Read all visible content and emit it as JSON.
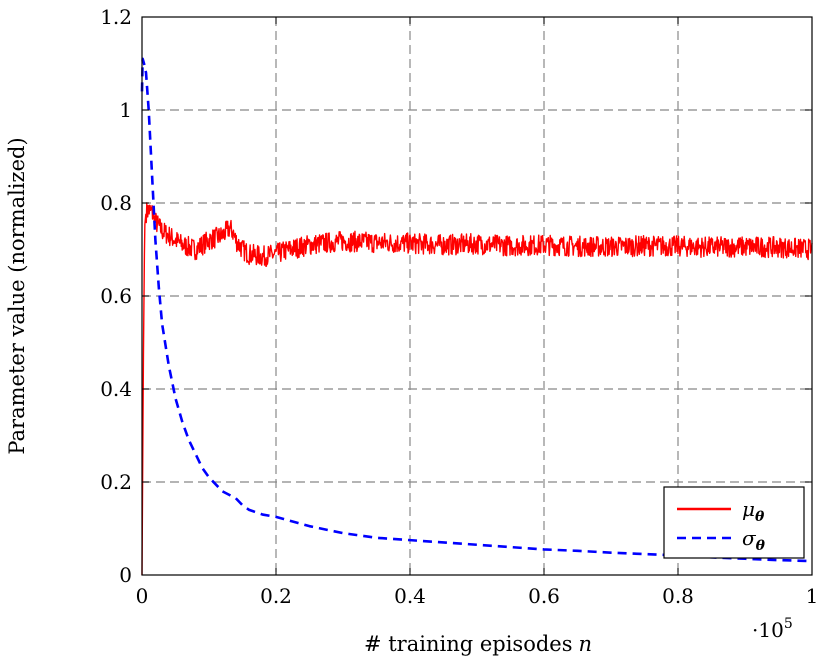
{
  "chart_data": {
    "type": "line",
    "xlabel": "# training episodes",
    "xlabel_var": "n",
    "ylabel": "Parameter value (normalized)",
    "x_multiplier_base": "·10",
    "x_multiplier_exp": "5",
    "xlim": [
      0,
      1
    ],
    "ylim": [
      0,
      1.2
    ],
    "xticks": [
      "0",
      "0.2",
      "0.4",
      "0.6",
      "0.8",
      "1"
    ],
    "yticks": [
      "0",
      "0.2",
      "0.4",
      "0.6",
      "0.8",
      "1",
      "1.2"
    ],
    "grid": true,
    "legend_position": "bottom-right",
    "series": [
      {
        "name": "μθ",
        "symbol": "μ",
        "subscript": "θ",
        "color": "#ff0000",
        "style": "solid",
        "noisy": true,
        "x": [
          0,
          0.002,
          0.004,
          0.006,
          0.01,
          0.015,
          0.02,
          0.025,
          0.03,
          0.04,
          0.05,
          0.06,
          0.08,
          0.1,
          0.12,
          0.13,
          0.135,
          0.14,
          0.15,
          0.16,
          0.18,
          0.2,
          0.22,
          0.25,
          0.28,
          0.3,
          0.35,
          0.4,
          0.45,
          0.5,
          0.55,
          0.6,
          0.65,
          0.7,
          0.75,
          0.8,
          0.85,
          0.9,
          0.95,
          1.0
        ],
        "y": [
          0.0,
          0.45,
          0.75,
          0.78,
          0.785,
          0.78,
          0.76,
          0.75,
          0.74,
          0.73,
          0.72,
          0.71,
          0.7,
          0.72,
          0.73,
          0.745,
          0.74,
          0.72,
          0.7,
          0.69,
          0.685,
          0.69,
          0.7,
          0.71,
          0.715,
          0.718,
          0.715,
          0.713,
          0.71,
          0.712,
          0.708,
          0.71,
          0.707,
          0.706,
          0.708,
          0.707,
          0.705,
          0.706,
          0.705,
          0.7
        ]
      },
      {
        "name": "σθ",
        "symbol": "σ",
        "subscript": "θ",
        "color": "#0000ff",
        "style": "dashed",
        "noisy": false,
        "x": [
          0,
          0.001,
          0.003,
          0.006,
          0.01,
          0.015,
          0.02,
          0.025,
          0.03,
          0.04,
          0.05,
          0.06,
          0.07,
          0.08,
          0.09,
          0.1,
          0.12,
          0.14,
          0.15,
          0.16,
          0.18,
          0.2,
          0.25,
          0.3,
          0.35,
          0.4,
          0.45,
          0.5,
          0.55,
          0.6,
          0.65,
          0.7,
          0.75,
          0.8,
          0.85,
          0.9,
          0.95,
          1.0
        ],
        "y": [
          1.04,
          1.11,
          1.1,
          1.08,
          1.0,
          0.86,
          0.72,
          0.62,
          0.54,
          0.45,
          0.38,
          0.33,
          0.29,
          0.26,
          0.23,
          0.21,
          0.18,
          0.165,
          0.15,
          0.14,
          0.13,
          0.125,
          0.105,
          0.09,
          0.08,
          0.075,
          0.07,
          0.065,
          0.06,
          0.055,
          0.052,
          0.048,
          0.045,
          0.042,
          0.038,
          0.035,
          0.032,
          0.03
        ]
      }
    ]
  }
}
